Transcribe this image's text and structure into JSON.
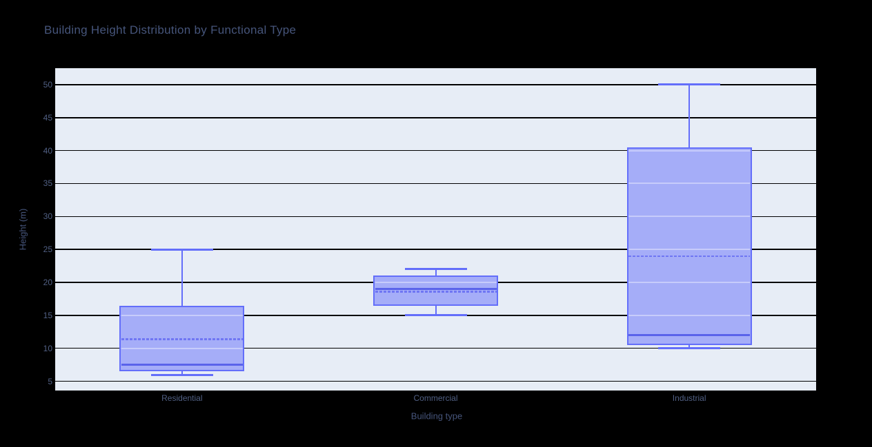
{
  "chart_data": {
    "type": "box",
    "title": "Building Height Distribution by Functional Type",
    "xlabel": "Building type",
    "ylabel": "Height (m)",
    "categories": [
      "Residential",
      "Commercial",
      "Industrial"
    ],
    "series": [
      {
        "name": "Residential",
        "low": 6,
        "q1": 6.5,
        "median": 7.5,
        "q3": 16.5,
        "high": 25,
        "mean": 11.4
      },
      {
        "name": "Commercial",
        "low": 15,
        "q1": 16.5,
        "median": 19,
        "q3": 21,
        "high": 22,
        "mean": 18.6
      },
      {
        "name": "Industrial",
        "low": 10,
        "q1": 10.5,
        "median": 12,
        "q3": 40.5,
        "high": 50,
        "mean": 24
      }
    ],
    "yticks": [
      5,
      10,
      15,
      20,
      25,
      30,
      35,
      40,
      45,
      50
    ],
    "ylim": [
      3.6,
      52.5
    ],
    "grid": true,
    "legend": "none",
    "colors": {
      "paper_bg": "#000000",
      "plot_bg": "#e7edf6",
      "grid": "#000000",
      "box_line": "#636efa",
      "box_fill": "#a5adf8",
      "median_line": "#5a63ea",
      "mean_line": "#6f76f3",
      "title_text": "#46557b",
      "tick_text": "#516084"
    }
  }
}
